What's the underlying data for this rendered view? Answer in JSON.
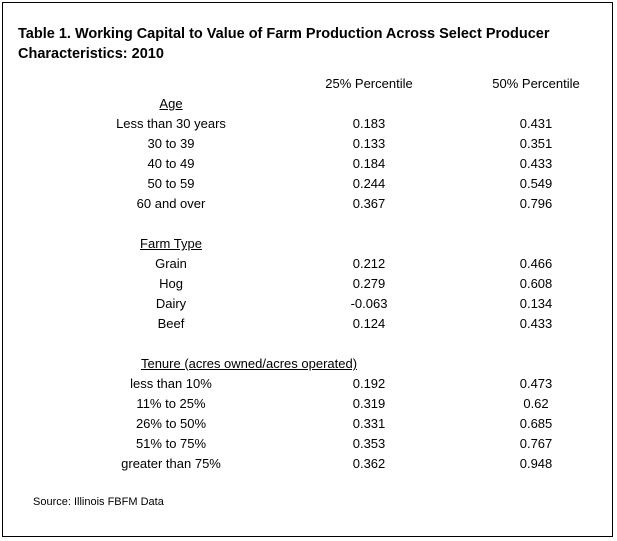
{
  "title": "Table 1.  Working Capital to Value of Farm Production Across Select Producer\n Characteristics: 2010",
  "columns": [
    "25% Percentile",
    "50% Percentile"
  ],
  "sections": [
    {
      "heading": "Age",
      "rows": [
        {
          "label": "Less than 30 years",
          "p25": "0.183",
          "p50": "0.431"
        },
        {
          "label": "30 to 39",
          "p25": "0.133",
          "p50": "0.351"
        },
        {
          "label": "40 to 49",
          "p25": "0.184",
          "p50": "0.433"
        },
        {
          "label": "50 to 59",
          "p25": "0.244",
          "p50": "0.549"
        },
        {
          "label": "60 and over",
          "p25": "0.367",
          "p50": "0.796"
        }
      ]
    },
    {
      "heading": "Farm Type",
      "rows": [
        {
          "label": "Grain",
          "p25": "0.212",
          "p50": "0.466"
        },
        {
          "label": "Hog",
          "p25": "0.279",
          "p50": "0.608"
        },
        {
          "label": "Dairy",
          "p25": "-0.063",
          "p50": "0.134"
        },
        {
          "label": "Beef",
          "p25": "0.124",
          "p50": "0.433"
        }
      ]
    },
    {
      "heading": "Tenure (acres owned/acres operated)",
      "rows": [
        {
          "label": "less than 10%",
          "p25": "0.192",
          "p50": "0.473"
        },
        {
          "label": "11% to 25%",
          "p25": "0.319",
          "p50": "0.62"
        },
        {
          "label": "26% to 50%",
          "p25": "0.331",
          "p50": "0.685"
        },
        {
          "label": "51% to 75%",
          "p25": "0.353",
          "p50": "0.767"
        },
        {
          "label": "greater than 75%",
          "p25": "0.362",
          "p50": "0.948"
        }
      ]
    }
  ],
  "source": "Source: Illinois FBFM Data"
}
